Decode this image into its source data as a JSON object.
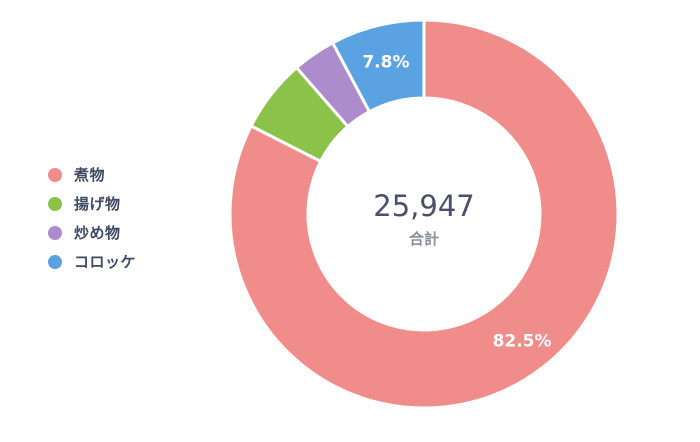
{
  "chart_data": {
    "type": "pie",
    "variant": "donut",
    "categories": [
      "煮物",
      "揚げ物",
      "炒め物",
      "コロッケ"
    ],
    "values": [
      82.5,
      6.1,
      3.6,
      7.8
    ],
    "colors": [
      "#f08c8a",
      "#8bc34a",
      "#ac8ccc",
      "#5aa2e2"
    ],
    "data_labels": [
      "82.5%",
      "",
      "",
      "7.8%"
    ],
    "center": {
      "value": "25,947",
      "label": "合計"
    },
    "legend_position": "left",
    "title": "",
    "grid": false
  }
}
